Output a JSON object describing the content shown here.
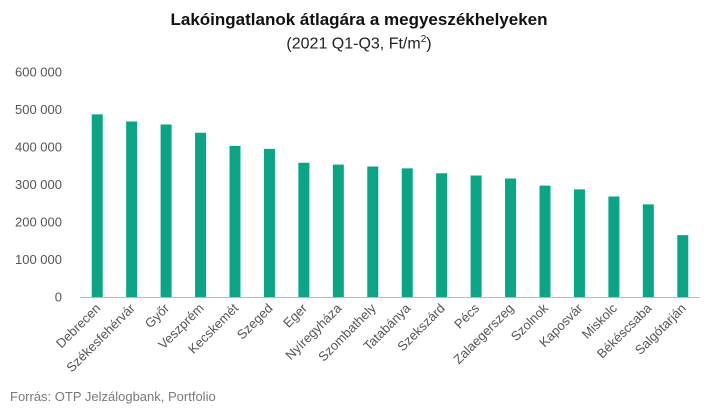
{
  "chart_data": {
    "type": "bar",
    "title": "Lakóingatlanok átlagára a megyeszékhelyeken",
    "subtitle_main": "(2021 Q1-Q3, Ft/m",
    "subtitle_sup": "2",
    "subtitle_end": ")",
    "xlabel": "",
    "ylabel": "",
    "ylim": [
      0,
      600000
    ],
    "yticks": [
      0,
      100000,
      200000,
      300000,
      400000,
      500000,
      600000
    ],
    "ytick_labels": [
      "0",
      "100 000",
      "200 000",
      "300 000",
      "400 000",
      "500 000",
      "600 000"
    ],
    "grid": false,
    "color": "#0aa584",
    "categories": [
      "Debrecen",
      "Székesfehérvár",
      "Győr",
      "Veszprém",
      "Kecskemét",
      "Szeged",
      "Eger",
      "Nyíregyháza",
      "Szombathely",
      "Tatabánya",
      "Szekszárd",
      "Pécs",
      "Zalaegerszeg",
      "Szolnok",
      "Kaposvár",
      "Miskolc",
      "Békéscsaba",
      "Salgótarján"
    ],
    "values": [
      487000,
      468000,
      460000,
      438000,
      403000,
      395000,
      358000,
      353000,
      348000,
      343000,
      330000,
      324000,
      316000,
      297000,
      287000,
      268000,
      247000,
      165000
    ]
  },
  "source": "Forrás: OTP Jelzálogbank, Portfolio"
}
